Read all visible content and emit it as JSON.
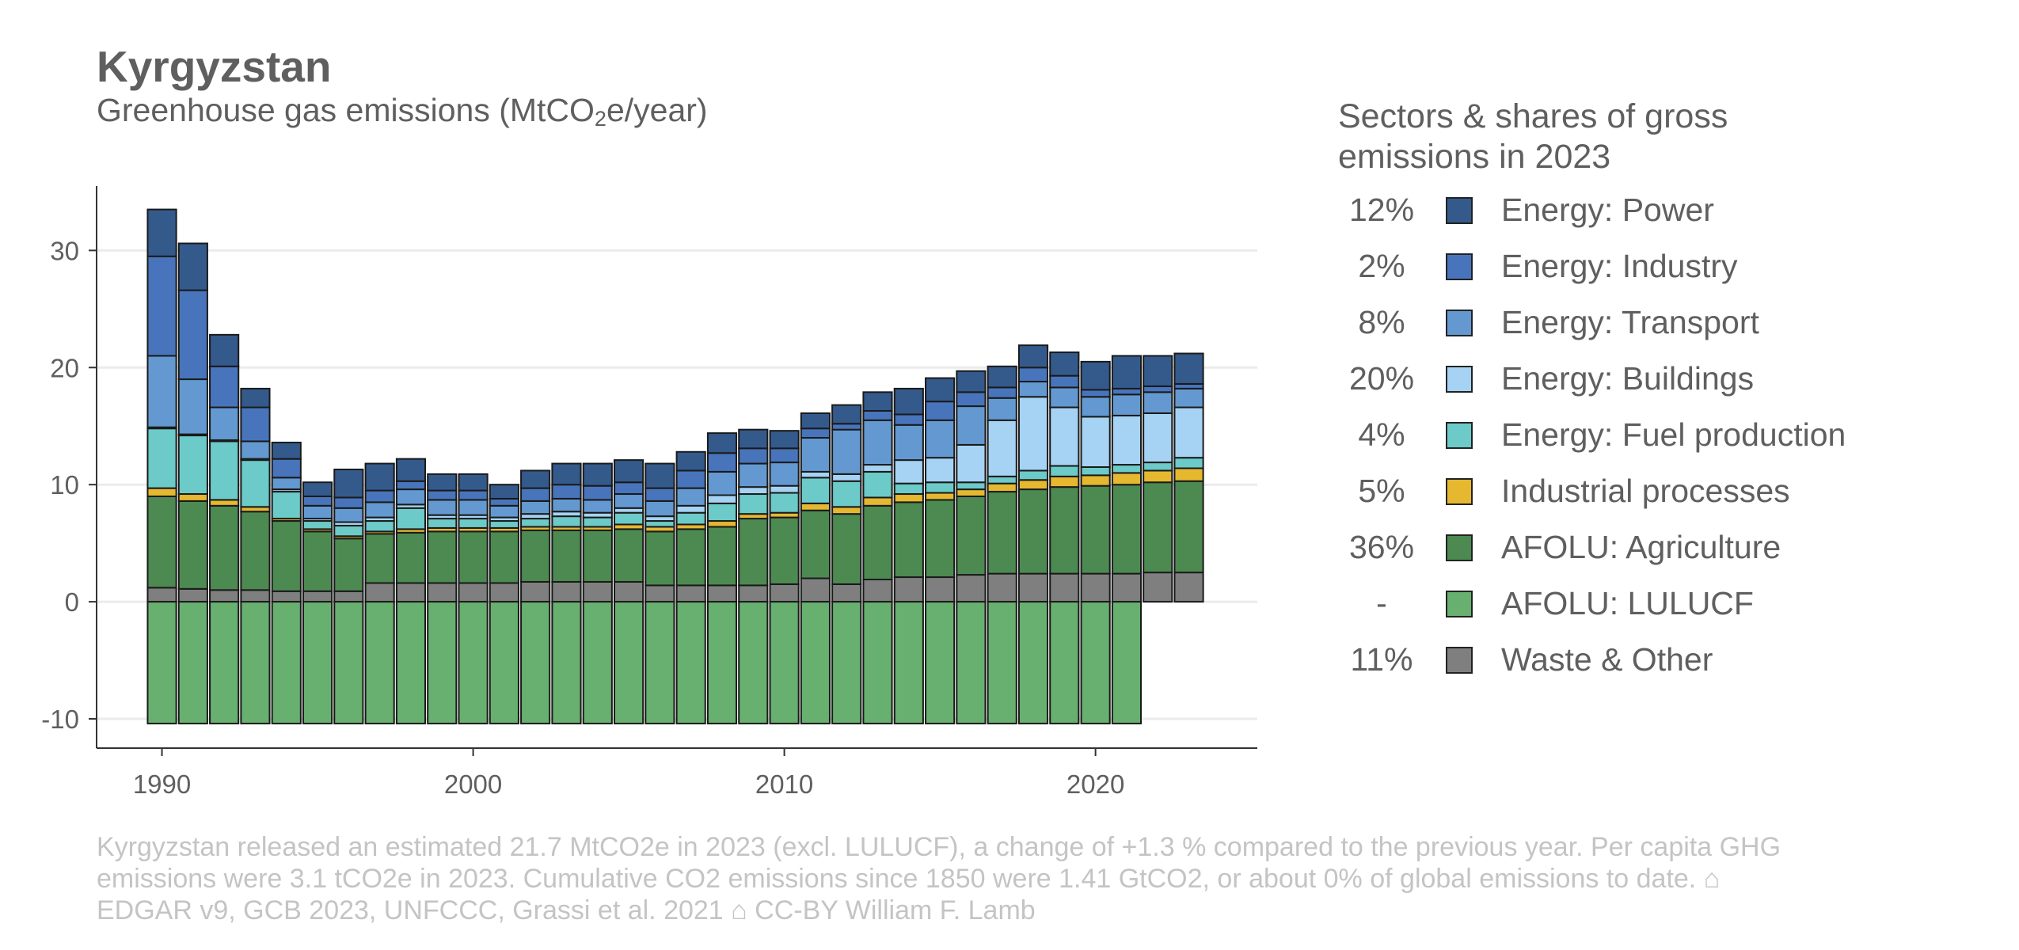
{
  "header": {
    "title": "Kyrgyzstan",
    "subtitle_prefix": "Greenhouse gas emissions (MtCO",
    "subtitle_sub": "2",
    "subtitle_suffix": "e/year)"
  },
  "legend": {
    "title": "Sectors & shares of gross emissions in 2023",
    "items": [
      {
        "share": "12%",
        "label": "Energy: Power",
        "color": "#345a8c"
      },
      {
        "share": "2%",
        "label": "Energy: Industry",
        "color": "#4874bb"
      },
      {
        "share": "8%",
        "label": "Energy: Transport",
        "color": "#6399d0"
      },
      {
        "share": "20%",
        "label": "Energy: Buildings",
        "color": "#a6d3f3"
      },
      {
        "share": "4%",
        "label": "Energy: Fuel production",
        "color": "#6ccac8"
      },
      {
        "share": "5%",
        "label": "Industrial processes",
        "color": "#e5b830"
      },
      {
        "share": "36%",
        "label": "AFOLU: Agriculture",
        "color": "#4c8a52"
      },
      {
        "share": "-",
        "label": "AFOLU: LULUCF",
        "color": "#67b06f"
      },
      {
        "share": "11%",
        "label": "Waste & Other",
        "color": "#7f7f7f"
      }
    ]
  },
  "caption": "Kyrgyzstan released an estimated 21.7 MtCO2e in 2023 (excl. LULUCF), a change of +1.3 % compared to the previous year. Per capita GHG emissions were 3.1 tCO2e in 2023. Cumulative CO2 emissions since 1850 were 1.41 GtCO2, or about 0% of global emissions to date. ⌂ EDGAR v9, GCB 2023, UNFCCC, Grassi et al. 2021 ⌂ CC-BY William F. Lamb",
  "chart_data": {
    "type": "bar",
    "stacked": true,
    "x": [
      1990,
      1991,
      1992,
      1993,
      1994,
      1995,
      1996,
      1997,
      1998,
      1999,
      2000,
      2001,
      2002,
      2003,
      2004,
      2005,
      2006,
      2007,
      2008,
      2009,
      2010,
      2011,
      2012,
      2013,
      2014,
      2015,
      2016,
      2017,
      2018,
      2019,
      2020,
      2021,
      2022,
      2023
    ],
    "x_ticks": [
      1990,
      2000,
      2010,
      2020
    ],
    "y_ticks": [
      -10,
      0,
      10,
      20,
      30
    ],
    "ylim": [
      -12.5,
      35.5
    ],
    "xlim": [
      1987.9,
      2025.2
    ],
    "grid": "horizontal",
    "legend_position": "right",
    "series": [
      {
        "name": "Waste & Other",
        "color": "#7f7f7f",
        "values": [
          1.2,
          1.1,
          1.0,
          1.0,
          0.9,
          0.9,
          0.9,
          1.6,
          1.6,
          1.6,
          1.6,
          1.6,
          1.7,
          1.7,
          1.7,
          1.7,
          1.4,
          1.4,
          1.4,
          1.4,
          1.5,
          2.0,
          1.5,
          1.9,
          2.1,
          2.1,
          2.3,
          2.4,
          2.4,
          2.4,
          2.4,
          2.4,
          2.5,
          2.5
        ]
      },
      {
        "name": "AFOLU: Agriculture",
        "color": "#4c8a52",
        "values": [
          7.8,
          7.5,
          7.2,
          6.7,
          6.0,
          5.1,
          4.5,
          4.2,
          4.3,
          4.4,
          4.4,
          4.4,
          4.4,
          4.4,
          4.4,
          4.5,
          4.6,
          4.8,
          5.0,
          5.7,
          5.7,
          5.8,
          6.0,
          6.3,
          6.4,
          6.6,
          6.7,
          7.0,
          7.2,
          7.4,
          7.5,
          7.6,
          7.7,
          7.8
        ]
      },
      {
        "name": "Industrial processes",
        "color": "#e5b830",
        "values": [
          0.7,
          0.6,
          0.5,
          0.4,
          0.2,
          0.2,
          0.2,
          0.2,
          0.3,
          0.3,
          0.3,
          0.3,
          0.3,
          0.3,
          0.3,
          0.4,
          0.4,
          0.4,
          0.5,
          0.4,
          0.4,
          0.6,
          0.6,
          0.7,
          0.7,
          0.6,
          0.6,
          0.7,
          0.8,
          0.9,
          0.9,
          1.0,
          1.0,
          1.1
        ]
      },
      {
        "name": "Energy: Fuel production",
        "color": "#6ccac8",
        "values": [
          5.1,
          5.0,
          5.0,
          4.0,
          2.3,
          0.7,
          0.9,
          0.9,
          1.8,
          0.8,
          0.8,
          0.6,
          0.7,
          0.9,
          0.8,
          1.0,
          0.5,
          1.0,
          1.5,
          1.7,
          1.7,
          2.2,
          2.2,
          2.2,
          0.9,
          0.9,
          0.6,
          0.6,
          0.8,
          0.9,
          0.7,
          0.7,
          0.7,
          0.9
        ]
      },
      {
        "name": "Energy: Buildings",
        "color": "#a6d3f3",
        "values": [
          0.1,
          0.1,
          0.1,
          0.1,
          0.2,
          0.2,
          0.3,
          0.3,
          0.3,
          0.3,
          0.3,
          0.3,
          0.4,
          0.4,
          0.4,
          0.4,
          0.4,
          0.6,
          0.7,
          0.6,
          0.6,
          0.5,
          0.6,
          0.6,
          2.0,
          2.1,
          3.2,
          4.8,
          6.3,
          5.0,
          4.3,
          4.2,
          4.2,
          4.3
        ]
      },
      {
        "name": "Energy: Transport",
        "color": "#6399d0",
        "values": [
          6.1,
          4.7,
          2.8,
          1.5,
          1.0,
          1.1,
          1.2,
          1.3,
          1.3,
          1.3,
          1.3,
          1.0,
          1.1,
          1.1,
          1.1,
          1.2,
          1.3,
          1.5,
          2.0,
          2.0,
          2.0,
          2.9,
          3.8,
          3.8,
          3.0,
          3.2,
          3.3,
          1.9,
          1.3,
          1.7,
          1.7,
          1.8,
          1.8,
          1.6
        ]
      },
      {
        "name": "Energy: Industry",
        "color": "#4874bb",
        "values": [
          8.5,
          7.6,
          3.5,
          2.9,
          1.6,
          0.8,
          0.9,
          1.0,
          0.7,
          0.8,
          0.8,
          0.6,
          1.1,
          1.2,
          1.2,
          1.0,
          1.1,
          1.5,
          1.6,
          1.3,
          1.2,
          0.8,
          0.5,
          0.8,
          0.9,
          1.6,
          1.2,
          0.9,
          1.2,
          1.0,
          0.6,
          0.5,
          0.5,
          0.4
        ]
      },
      {
        "name": "Energy: Power",
        "color": "#345a8c",
        "values": [
          4.0,
          4.0,
          2.7,
          1.6,
          1.4,
          1.2,
          2.4,
          2.3,
          1.9,
          1.4,
          1.4,
          1.2,
          1.5,
          1.8,
          1.9,
          1.9,
          2.1,
          1.6,
          1.7,
          1.6,
          1.5,
          1.3,
          1.6,
          1.6,
          2.2,
          2.0,
          1.8,
          1.8,
          1.9,
          2.0,
          2.4,
          2.8,
          2.6,
          2.6
        ]
      },
      {
        "name": "AFOLU: LULUCF",
        "color": "#67b06f",
        "values": [
          -10.4,
          -10.4,
          -10.4,
          -10.4,
          -10.4,
          -10.4,
          -10.4,
          -10.4,
          -10.4,
          -10.4,
          -10.4,
          -10.4,
          -10.4,
          -10.4,
          -10.4,
          -10.4,
          -10.4,
          -10.4,
          -10.4,
          -10.4,
          -10.4,
          -10.4,
          -10.4,
          -10.4,
          -10.4,
          -10.4,
          -10.4,
          -10.4,
          -10.4,
          -10.4,
          -10.4,
          -10.4,
          null,
          null
        ]
      }
    ]
  }
}
